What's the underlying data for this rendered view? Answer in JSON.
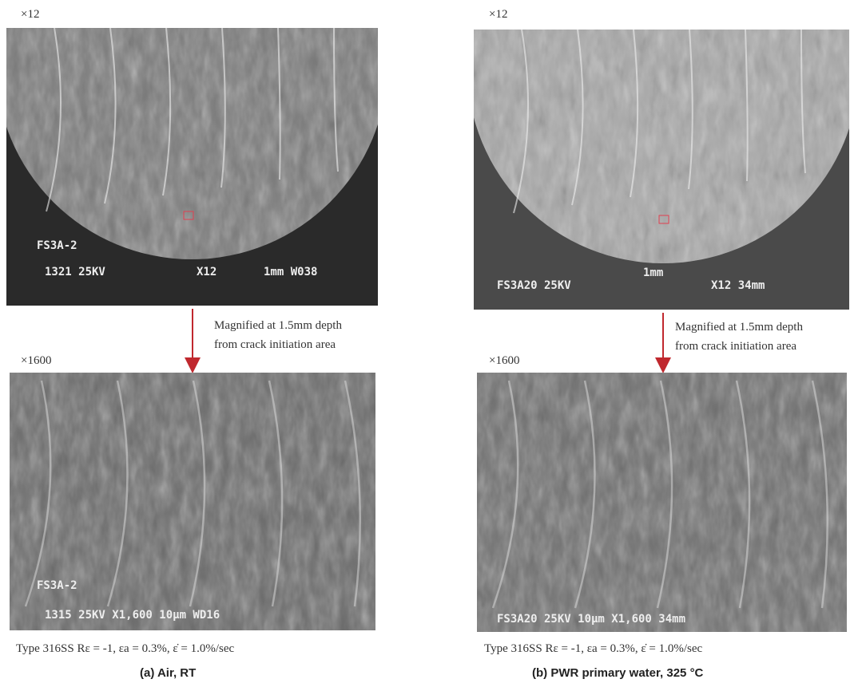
{
  "panels": [
    {
      "top_label": "×12",
      "top_overlay": [
        "FS3A-2",
        "1321  25KV",
        "X12",
        "1mm W038"
      ],
      "note": [
        "Magnified at 1.5mm depth",
        "from crack initiation area"
      ],
      "bottom_label": "×1600",
      "bottom_overlay": [
        "FS3A-2",
        "1315  25KV  X1,600  10μm  WD16"
      ],
      "conditions": "Type 316SS    Rε = -1,  εa = 0.3%,   ε̇  = 1.0%/sec",
      "caption": "(a)   Air, RT"
    },
    {
      "top_label": "×12",
      "top_overlay": [
        "FS3A20  25KV",
        "1mm",
        "X12  34mm"
      ],
      "note": [
        "Magnified at 1.5mm depth",
        "from crack initiation area"
      ],
      "bottom_label": "×1600",
      "bottom_overlay": [
        "FS3A20  25KV  10μm  X1,600  34mm"
      ],
      "conditions": "Type 316SS    Rε = -1,  εa = 0.3%,   ε̇  = 1.0%/sec",
      "caption": "(b)   PWR primary water, 325 °C"
    }
  ]
}
